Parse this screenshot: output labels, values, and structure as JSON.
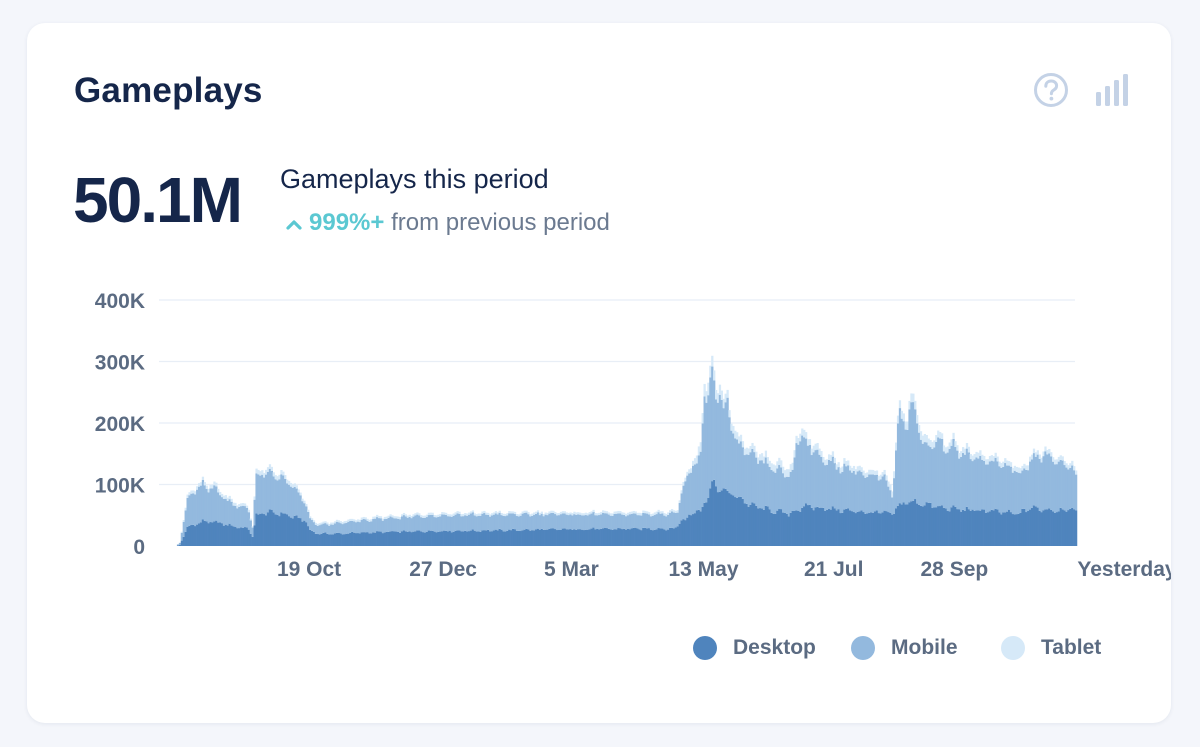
{
  "card": {
    "title": "Gameplays",
    "help_icon": "help-circle-icon",
    "chart_toggle_icon": "bar-chart-icon"
  },
  "summary": {
    "total": "50.1M",
    "label": "Gameplays this period",
    "change_pct": "999%+",
    "change_text": "from previous period",
    "change_icon": "chevron-up-icon"
  },
  "colors": {
    "desktop": "#4f84bd",
    "mobile": "#93b9de",
    "tablet": "#d6e9f8",
    "title": "#15264a",
    "change_accent": "#5bc8d2",
    "grid": "#e8eef6",
    "axis_text": "#5b6b82"
  },
  "chart_data": {
    "type": "bar",
    "stacked": true,
    "ylim": [
      0,
      400000
    ],
    "ytick_labels": [
      "0",
      "100K",
      "200K",
      "300K",
      "400K"
    ],
    "ytick_values": [
      0,
      100000,
      200000,
      300000,
      400000
    ],
    "xtick_labels": [
      "19 Oct",
      "27 Dec",
      "5 Mar",
      "13 May",
      "21 Jul",
      "28 Sep",
      "Yesterday"
    ],
    "xtick_index": [
      70,
      140,
      207,
      276,
      344,
      407,
      470
    ],
    "grid": true,
    "legend": "bottom-right",
    "series": [
      {
        "name": "Desktop",
        "key": "desktop",
        "profile": [
          [
            0,
            0
          ],
          [
            2,
            2000
          ],
          [
            6,
            30000
          ],
          [
            14,
            40000
          ],
          [
            22,
            38000
          ],
          [
            30,
            32000
          ],
          [
            38,
            28000
          ],
          [
            40,
            15000
          ],
          [
            42,
            50000
          ],
          [
            48,
            55000
          ],
          [
            56,
            52000
          ],
          [
            64,
            45000
          ],
          [
            68,
            40000
          ],
          [
            70,
            25000
          ],
          [
            74,
            20000
          ],
          [
            85,
            20000
          ],
          [
            100,
            22000
          ],
          [
            130,
            24000
          ],
          [
            160,
            25000
          ],
          [
            200,
            27000
          ],
          [
            240,
            28000
          ],
          [
            260,
            28000
          ],
          [
            262,
            32000
          ],
          [
            264,
            45000
          ],
          [
            266,
            40000
          ],
          [
            268,
            50000
          ],
          [
            270,
            55000
          ],
          [
            272,
            60000
          ],
          [
            274,
            55000
          ],
          [
            280,
            100000
          ],
          [
            284,
            92000
          ],
          [
            290,
            85000
          ],
          [
            296,
            75000
          ],
          [
            300,
            66000
          ],
          [
            306,
            62000
          ],
          [
            310,
            58000
          ],
          [
            316,
            55000
          ],
          [
            320,
            52000
          ],
          [
            324,
            58000
          ],
          [
            330,
            65000
          ],
          [
            336,
            62000
          ],
          [
            342,
            60000
          ],
          [
            348,
            58000
          ],
          [
            356,
            56000
          ],
          [
            364,
            54000
          ],
          [
            370,
            55000
          ],
          [
            374,
            50000
          ],
          [
            376,
            62000
          ],
          [
            382,
            72000
          ],
          [
            388,
            70000
          ],
          [
            394,
            66000
          ],
          [
            400,
            62000
          ],
          [
            408,
            60000
          ],
          [
            416,
            58000
          ],
          [
            424,
            57000
          ],
          [
            432,
            55000
          ],
          [
            440,
            52000
          ],
          [
            446,
            62000
          ],
          [
            452,
            60000
          ],
          [
            460,
            58000
          ],
          [
            466,
            60000
          ],
          [
            470,
            58000
          ]
        ]
      },
      {
        "name": "Mobile",
        "key": "mobile",
        "profile": [
          [
            0,
            0
          ],
          [
            2,
            3000
          ],
          [
            6,
            45000
          ],
          [
            10,
            55000
          ],
          [
            14,
            60000
          ],
          [
            16,
            52000
          ],
          [
            20,
            56000
          ],
          [
            24,
            45000
          ],
          [
            28,
            38000
          ],
          [
            32,
            35000
          ],
          [
            36,
            33000
          ],
          [
            38,
            30000
          ],
          [
            40,
            15000
          ],
          [
            42,
            65000
          ],
          [
            48,
            62000
          ],
          [
            54,
            60000
          ],
          [
            60,
            50000
          ],
          [
            66,
            35000
          ],
          [
            68,
            25000
          ],
          [
            70,
            18000
          ],
          [
            74,
            14000
          ],
          [
            90,
            18000
          ],
          [
            110,
            22000
          ],
          [
            130,
            25000
          ],
          [
            150,
            26000
          ],
          [
            180,
            25000
          ],
          [
            210,
            24000
          ],
          [
            240,
            23000
          ],
          [
            262,
            25000
          ],
          [
            264,
            45000
          ],
          [
            266,
            60000
          ],
          [
            268,
            70000
          ],
          [
            270,
            80000
          ],
          [
            272,
            70000
          ],
          [
            274,
            95000
          ],
          [
            276,
            180000
          ],
          [
            278,
            160000
          ],
          [
            280,
            175000
          ],
          [
            282,
            150000
          ],
          [
            284,
            160000
          ],
          [
            286,
            130000
          ],
          [
            288,
            145000
          ],
          [
            290,
            110000
          ],
          [
            292,
            90000
          ],
          [
            296,
            85000
          ],
          [
            300,
            80000
          ],
          [
            304,
            78000
          ],
          [
            308,
            72000
          ],
          [
            312,
            70000
          ],
          [
            318,
            62000
          ],
          [
            322,
            65000
          ],
          [
            324,
            110000
          ],
          [
            326,
            120000
          ],
          [
            330,
            100000
          ],
          [
            334,
            90000
          ],
          [
            338,
            80000
          ],
          [
            342,
            75000
          ],
          [
            346,
            70000
          ],
          [
            352,
            68000
          ],
          [
            358,
            62000
          ],
          [
            364,
            58000
          ],
          [
            370,
            55000
          ],
          [
            374,
            30000
          ],
          [
            376,
            95000
          ],
          [
            378,
            150000
          ],
          [
            380,
            140000
          ],
          [
            382,
            130000
          ],
          [
            384,
            160000
          ],
          [
            386,
            145000
          ],
          [
            388,
            120000
          ],
          [
            390,
            100000
          ],
          [
            394,
            95000
          ],
          [
            398,
            110000
          ],
          [
            402,
            95000
          ],
          [
            406,
            100000
          ],
          [
            410,
            88000
          ],
          [
            414,
            90000
          ],
          [
            418,
            85000
          ],
          [
            424,
            80000
          ],
          [
            430,
            78000
          ],
          [
            434,
            75000
          ],
          [
            438,
            70000
          ],
          [
            442,
            62000
          ],
          [
            446,
            75000
          ],
          [
            450,
            85000
          ],
          [
            456,
            90000
          ],
          [
            460,
            80000
          ],
          [
            464,
            75000
          ],
          [
            470,
            60000
          ]
        ]
      },
      {
        "name": "Tablet",
        "key": "tablet",
        "profile": [
          [
            0,
            0
          ],
          [
            2,
            800
          ],
          [
            6,
            5000
          ],
          [
            20,
            6000
          ],
          [
            38,
            4000
          ],
          [
            40,
            2000
          ],
          [
            42,
            8000
          ],
          [
            60,
            6000
          ],
          [
            70,
            3000
          ],
          [
            100,
            3500
          ],
          [
            200,
            3500
          ],
          [
            262,
            4000
          ],
          [
            270,
            8000
          ],
          [
            276,
            20000
          ],
          [
            280,
            18000
          ],
          [
            290,
            12000
          ],
          [
            300,
            10000
          ],
          [
            324,
            12000
          ],
          [
            340,
            9000
          ],
          [
            370,
            7000
          ],
          [
            376,
            12000
          ],
          [
            386,
            14000
          ],
          [
            400,
            10000
          ],
          [
            430,
            8000
          ],
          [
            470,
            7000
          ]
        ]
      }
    ]
  },
  "legend": [
    {
      "name": "Desktop",
      "key": "desktop"
    },
    {
      "name": "Mobile",
      "key": "mobile"
    },
    {
      "name": "Tablet",
      "key": "tablet"
    }
  ]
}
